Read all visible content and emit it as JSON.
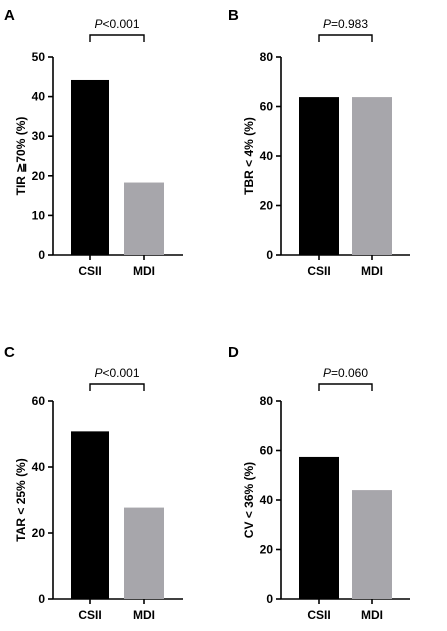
{
  "chart_data": [
    {
      "panel": "A",
      "type": "bar",
      "categories": [
        "CSII",
        "MDI"
      ],
      "values": [
        44.2,
        18.3
      ],
      "colors": [
        "#000000",
        "#a7a6ab"
      ],
      "ylabel": "TIR ≧70% (%)",
      "ylim": [
        0,
        50
      ],
      "yticks": [
        0,
        10,
        20,
        30,
        40,
        50
      ],
      "p_prefix": "P",
      "p_value": "<0.001"
    },
    {
      "panel": "B",
      "type": "bar",
      "categories": [
        "CSII",
        "MDI"
      ],
      "values": [
        63.8,
        63.8
      ],
      "colors": [
        "#000000",
        "#a7a6ab"
      ],
      "ylabel": "TBR < 4% (%)",
      "ylim": [
        0,
        80
      ],
      "yticks": [
        0,
        20,
        40,
        60,
        80
      ],
      "p_prefix": "P",
      "p_value": "=0.983"
    },
    {
      "panel": "C",
      "type": "bar",
      "categories": [
        "CSII",
        "MDI"
      ],
      "values": [
        50.8,
        27.7
      ],
      "colors": [
        "#000000",
        "#a7a6ab"
      ],
      "ylabel": "TAR < 25% (%)",
      "ylim": [
        0,
        60
      ],
      "yticks": [
        0,
        20,
        40,
        60
      ],
      "p_prefix": "P",
      "p_value": "<0.001"
    },
    {
      "panel": "D",
      "type": "bar",
      "categories": [
        "CSII",
        "MDI"
      ],
      "values": [
        57.4,
        44.0
      ],
      "colors": [
        "#000000",
        "#a7a6ab"
      ],
      "ylabel": "CV < 36% (%)",
      "ylim": [
        0,
        80
      ],
      "yticks": [
        0,
        20,
        40,
        60,
        80
      ],
      "p_prefix": "P",
      "p_value": "=0.060"
    }
  ]
}
